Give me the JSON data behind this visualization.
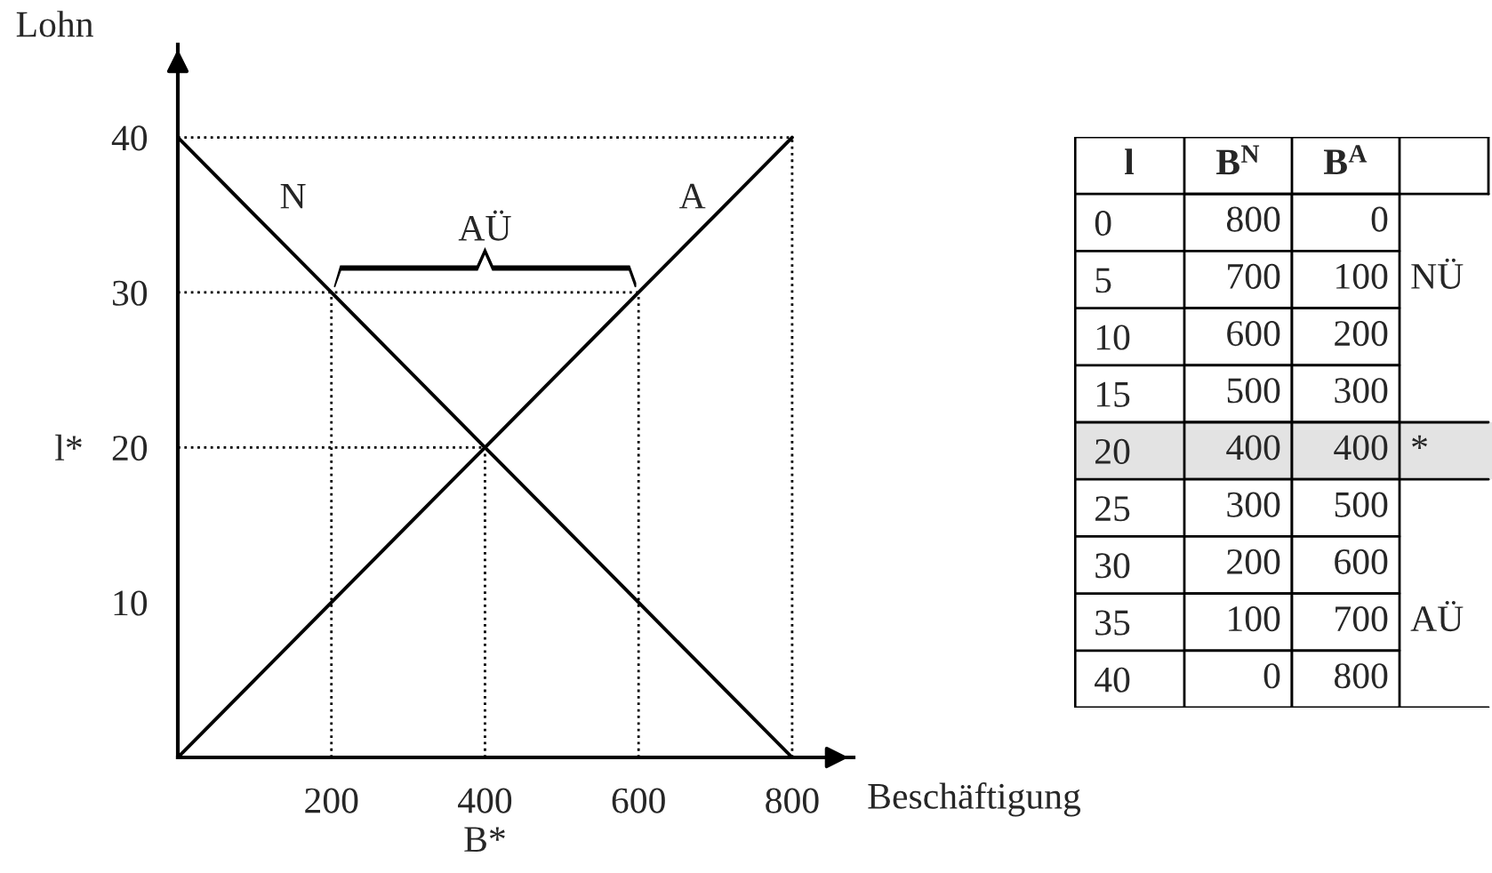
{
  "chart_data": [
    {
      "type": "line",
      "xlabel": "Beschäftigung",
      "ylabel": "Lohn",
      "series": [
        {
          "name": "N",
          "color": "#000000",
          "x": [
            800,
            700,
            600,
            500,
            400,
            300,
            200,
            100,
            0
          ],
          "values": [
            0,
            5,
            10,
            15,
            20,
            25,
            30,
            35,
            40
          ]
        },
        {
          "name": "A",
          "color": "#000000",
          "x": [
            0,
            100,
            200,
            300,
            400,
            500,
            600,
            700,
            800
          ],
          "values": [
            0,
            5,
            10,
            15,
            20,
            25,
            30,
            35,
            40
          ]
        }
      ],
      "xlim": [
        0,
        880
      ],
      "ylim": [
        0,
        46
      ],
      "xticks": [
        200,
        {
          "value": 400,
          "label": "400\nB*"
        },
        600,
        800
      ],
      "yticks": [
        10,
        {
          "value": 20,
          "label": "l*   20"
        },
        30,
        40
      ],
      "ref_lines": [
        {
          "axis": "y",
          "value": 40,
          "line_style": "dotted",
          "color": "#000000"
        },
        {
          "axis": "y",
          "value": 30,
          "line_style": "dotted",
          "color": "#000000"
        },
        {
          "axis": "y",
          "value": 20,
          "line_style": "dotted",
          "color": "#000000"
        },
        {
          "axis": "x",
          "value": 800,
          "line_style": "dotted",
          "color": "#000000"
        },
        {
          "axis": "x",
          "value": 200,
          "line_style": "dotted",
          "color": "#000000"
        },
        {
          "axis": "x",
          "value": 600,
          "line_style": "dotted",
          "color": "#000000"
        },
        {
          "axis": "x",
          "value": 400,
          "line_style": "dotted",
          "color": "#000000"
        }
      ],
      "annotations": [
        {
          "text": "AÜ",
          "x": 400,
          "y": 30
        }
      ],
      "legend": false,
      "grid": false,
      "marker": "none",
      "line_style": "solid"
    },
    {
      "type": "heatmap",
      "ylabel": "l",
      "categories": [
        "B$^{N}$",
        "B$^{A}$"
      ],
      "y_categories": [
        "0",
        "5",
        "10",
        "15",
        "20",
        "25",
        "30",
        "35",
        "40"
      ],
      "cells": [
        [
          800,
          0
        ],
        [
          700,
          100
        ],
        [
          600,
          200
        ],
        [
          500,
          300
        ],
        [
          400,
          400
        ],
        [
          300,
          500
        ],
        [
          200,
          600
        ],
        [
          100,
          700
        ],
        [
          0,
          800
        ]
      ],
      "data_labels": true,
      "y2_categories": [
        null,
        "NÜ",
        null,
        null,
        "*",
        null,
        null,
        "AÜ",
        null
      ]
    }
  ]
}
